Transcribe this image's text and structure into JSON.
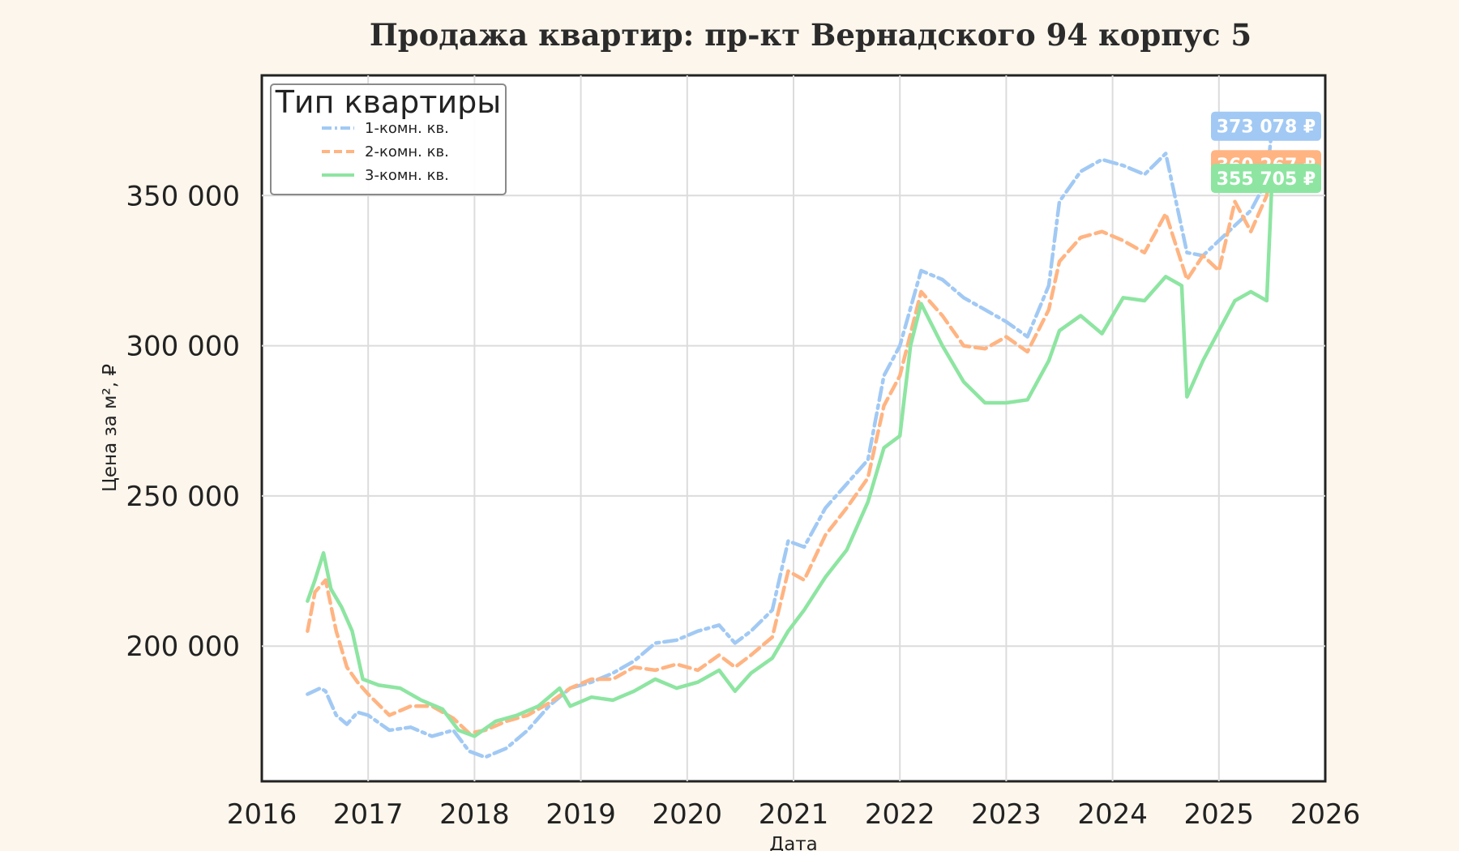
{
  "chart_data": {
    "type": "line",
    "title": "Продажа квартир: пр-кт Вернадского 94 корпус 5",
    "xlabel": "Дата",
    "ylabel": "Цена за м², ₽",
    "xlim": [
      2016,
      2026
    ],
    "ylim": [
      155000,
      390000
    ],
    "x_ticks": [
      2016,
      2017,
      2018,
      2019,
      2020,
      2021,
      2022,
      2023,
      2024,
      2025,
      2026
    ],
    "x_tick_labels": [
      "2016",
      "2017",
      "2018",
      "2019",
      "2020",
      "2021",
      "2022",
      "2023",
      "2024",
      "2025",
      "2026"
    ],
    "y_ticks": [
      200000,
      250000,
      300000,
      350000
    ],
    "y_tick_labels": [
      "200 000",
      "250 000",
      "300 000",
      "350 000"
    ],
    "grid": true,
    "legend": {
      "title": "Тип квартиры",
      "placement": "top-left"
    },
    "series": [
      {
        "name": "1-комн. кв.",
        "color": "#a1c9f4",
        "dash": "dashdot",
        "end_label": "373 078 ₽",
        "end_value": 373078,
        "x": [
          2016.43,
          2016.55,
          2016.6,
          2016.7,
          2016.8,
          2016.9,
          2017.0,
          2017.2,
          2017.4,
          2017.6,
          2017.8,
          2017.95,
          2018.1,
          2018.3,
          2018.5,
          2018.7,
          2018.9,
          2019.1,
          2019.3,
          2019.5,
          2019.7,
          2019.9,
          2020.1,
          2020.3,
          2020.45,
          2020.6,
          2020.8,
          2020.95,
          2021.1,
          2021.3,
          2021.5,
          2021.7,
          2021.85,
          2022.0,
          2022.2,
          2022.4,
          2022.6,
          2022.8,
          2023.0,
          2023.2,
          2023.4,
          2023.5,
          2023.7,
          2023.9,
          2024.1,
          2024.3,
          2024.5,
          2024.7,
          2024.85,
          2025.0,
          2025.15,
          2025.3,
          2025.45,
          2025.5
        ],
        "y": [
          184000,
          186000,
          185000,
          177000,
          174000,
          178000,
          177000,
          172000,
          173000,
          170000,
          172000,
          165000,
          163000,
          166000,
          172000,
          180000,
          186000,
          188000,
          191000,
          195000,
          201000,
          202000,
          205000,
          207000,
          201000,
          205000,
          212000,
          235000,
          233000,
          246000,
          254000,
          262000,
          290000,
          300000,
          325000,
          322000,
          316000,
          312000,
          308000,
          303000,
          320000,
          348000,
          358000,
          362000,
          360000,
          357000,
          364000,
          331000,
          330000,
          335000,
          340000,
          345000,
          355000,
          373078
        ]
      },
      {
        "name": "2-комн. кв.",
        "color": "#ffb482",
        "dash": "dashed",
        "end_label": "360 267 ₽",
        "end_value": 360267,
        "x": [
          2016.43,
          2016.5,
          2016.6,
          2016.7,
          2016.8,
          2016.9,
          2017.0,
          2017.2,
          2017.4,
          2017.6,
          2017.8,
          2017.95,
          2018.1,
          2018.3,
          2018.5,
          2018.7,
          2018.9,
          2019.1,
          2019.3,
          2019.5,
          2019.7,
          2019.9,
          2020.1,
          2020.3,
          2020.45,
          2020.6,
          2020.8,
          2020.95,
          2021.1,
          2021.3,
          2021.5,
          2021.7,
          2021.85,
          2022.0,
          2022.2,
          2022.4,
          2022.6,
          2022.8,
          2023.0,
          2023.2,
          2023.4,
          2023.5,
          2023.7,
          2023.9,
          2024.1,
          2024.3,
          2024.5,
          2024.7,
          2024.85,
          2025.0,
          2025.15,
          2025.3,
          2025.45,
          2025.5
        ],
        "y": [
          205000,
          218000,
          222000,
          205000,
          193000,
          188000,
          184000,
          177000,
          180000,
          180000,
          176000,
          171000,
          172000,
          175000,
          177000,
          181000,
          186000,
          189000,
          189000,
          193000,
          192000,
          194000,
          192000,
          197000,
          193000,
          197000,
          203000,
          225000,
          222000,
          237000,
          246000,
          256000,
          280000,
          290000,
          318000,
          310000,
          300000,
          299000,
          303000,
          298000,
          312000,
          328000,
          336000,
          338000,
          335000,
          331000,
          344000,
          322000,
          330000,
          325000,
          348000,
          338000,
          350000,
          360267
        ]
      },
      {
        "name": "3-комн. кв.",
        "color": "#8de5a1",
        "dash": "solid",
        "end_label": "355 705 ₽",
        "end_value": 355705,
        "x": [
          2016.43,
          2016.5,
          2016.58,
          2016.65,
          2016.75,
          2016.85,
          2016.95,
          2017.1,
          2017.3,
          2017.5,
          2017.7,
          2017.85,
          2018.0,
          2018.2,
          2018.4,
          2018.6,
          2018.8,
          2018.9,
          2019.1,
          2019.3,
          2019.5,
          2019.7,
          2019.9,
          2020.1,
          2020.3,
          2020.45,
          2020.6,
          2020.8,
          2020.95,
          2021.1,
          2021.3,
          2021.5,
          2021.7,
          2021.85,
          2022.0,
          2022.1,
          2022.2,
          2022.4,
          2022.6,
          2022.8,
          2023.0,
          2023.2,
          2023.4,
          2023.5,
          2023.7,
          2023.9,
          2024.1,
          2024.3,
          2024.5,
          2024.65,
          2024.7,
          2024.85,
          2025.0,
          2025.15,
          2025.3,
          2025.45,
          2025.5
        ],
        "y": [
          215000,
          222000,
          231000,
          219000,
          213000,
          205000,
          189000,
          187000,
          186000,
          182000,
          179000,
          172000,
          170000,
          175000,
          177000,
          180000,
          186000,
          180000,
          183000,
          182000,
          185000,
          189000,
          186000,
          188000,
          192000,
          185000,
          191000,
          196000,
          205000,
          212000,
          223000,
          232000,
          248000,
          266000,
          270000,
          300000,
          314000,
          300000,
          288000,
          281000,
          281000,
          282000,
          295000,
          305000,
          310000,
          304000,
          316000,
          315000,
          323000,
          320000,
          283000,
          295000,
          305000,
          315000,
          318000,
          315000,
          355705
        ]
      }
    ]
  }
}
